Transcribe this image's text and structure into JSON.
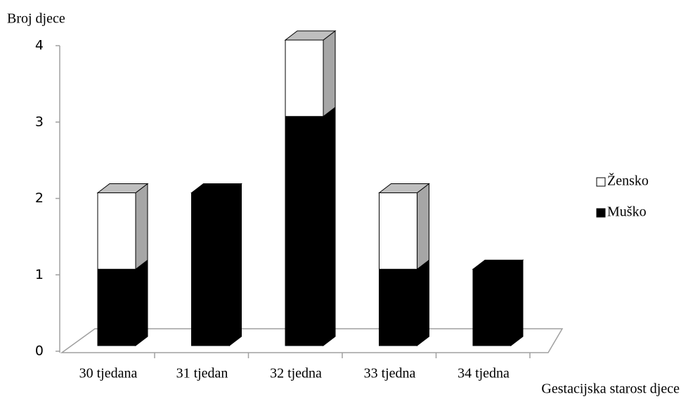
{
  "chart_data": {
    "type": "bar3d-stacked",
    "y_axis_title": "Broj djece",
    "x_axis_title": "Gestacijska starost djece",
    "categories": [
      "30 tjedana",
      "31 tjedan",
      "32 tjedna",
      "33 tjedna",
      "34 tjedna"
    ],
    "series": [
      {
        "name": "Muško",
        "color": "#000000",
        "values": [
          1,
          2,
          3,
          1,
          1
        ]
      },
      {
        "name": "Žensko",
        "color": "#ffffff",
        "values": [
          1,
          0,
          1,
          1,
          0
        ]
      }
    ],
    "ylim": [
      0,
      4
    ],
    "yticks": [
      0,
      1,
      2,
      3,
      4
    ],
    "legend": "right"
  }
}
